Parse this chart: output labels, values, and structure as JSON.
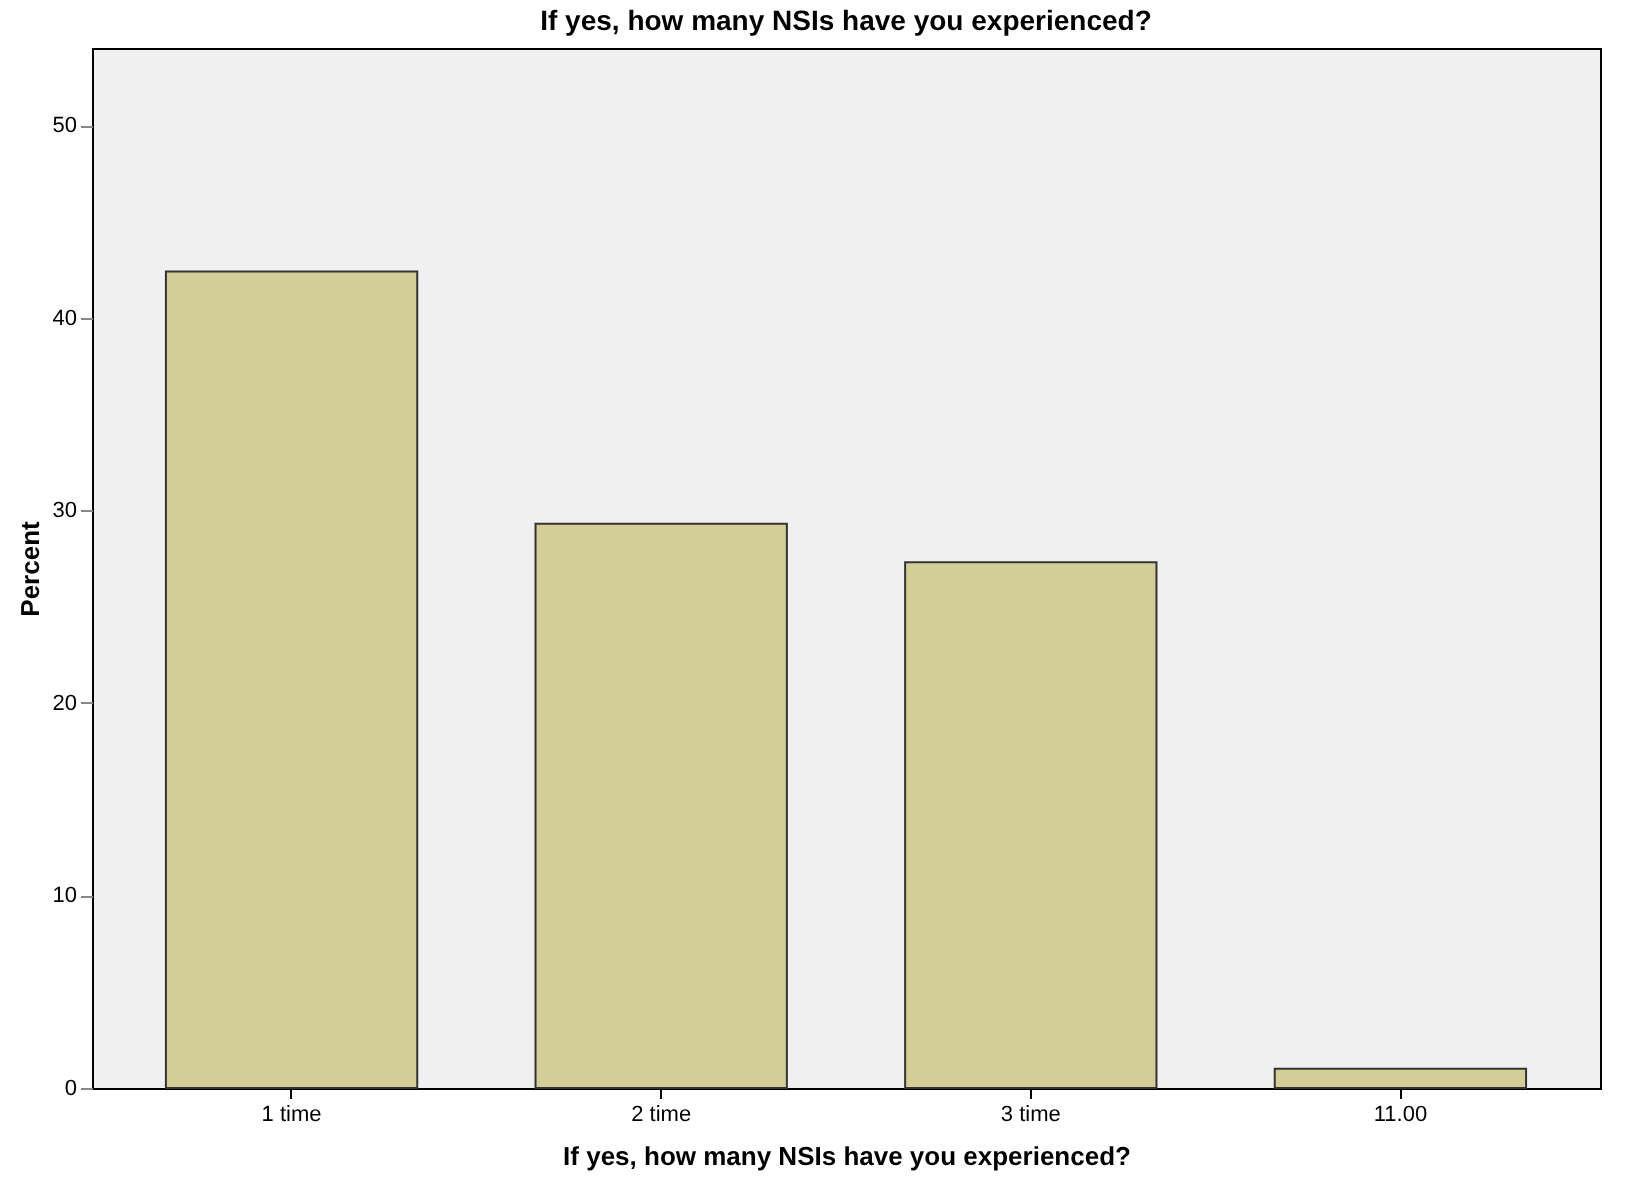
{
  "chart_data": {
    "type": "bar",
    "title": "If yes, how many NSIs have you experienced?",
    "xlabel": "If yes, how many NSIs have you experienced?",
    "ylabel": "Percent",
    "categories": [
      "1 time",
      "2 time",
      "3 time",
      "11.00"
    ],
    "values": [
      42.4,
      29.3,
      27.3,
      1.0
    ],
    "color": "#d3ce97",
    "ylim": [
      0,
      54
    ],
    "yticks": [
      0,
      10,
      20,
      30,
      40,
      50
    ],
    "grid": false
  }
}
